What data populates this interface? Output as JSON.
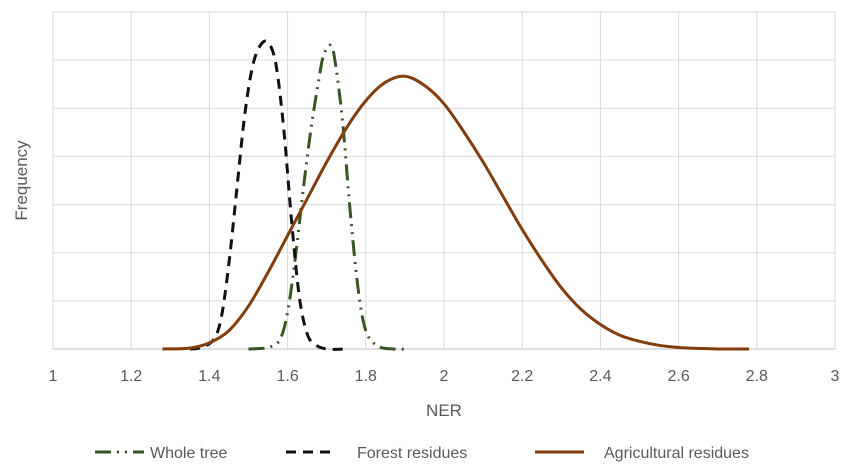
{
  "chart_data": {
    "type": "line",
    "title": "",
    "xlabel": "NER",
    "ylabel": "Frequency",
    "xlim": [
      1,
      3
    ],
    "ylim": [
      0,
      1
    ],
    "grid": true,
    "legend_position": "bottom",
    "x_ticks": [
      "1",
      "1.2",
      "1.4",
      "1.6",
      "1.8",
      "2",
      "2.2",
      "2.4",
      "2.6",
      "2.8",
      "3"
    ],
    "series": [
      {
        "name": "Whole tree",
        "color": "#375623",
        "style": "dash-dot-dot",
        "points": [
          [
            1.5,
            0.0
          ],
          [
            1.55,
            0.005
          ],
          [
            1.58,
            0.03
          ],
          [
            1.6,
            0.12
          ],
          [
            1.62,
            0.3
          ],
          [
            1.64,
            0.52
          ],
          [
            1.66,
            0.72
          ],
          [
            1.68,
            0.88
          ],
          [
            1.69,
            0.95
          ],
          [
            1.7,
            0.98
          ],
          [
            1.71,
            0.99
          ],
          [
            1.72,
            0.95
          ],
          [
            1.74,
            0.75
          ],
          [
            1.76,
            0.45
          ],
          [
            1.78,
            0.2
          ],
          [
            1.8,
            0.06
          ],
          [
            1.83,
            0.01
          ],
          [
            1.87,
            0.0
          ],
          [
            1.91,
            0.0
          ]
        ]
      },
      {
        "name": "Forest residues",
        "color": "#111111",
        "style": "dash",
        "points": [
          [
            1.35,
            0.0
          ],
          [
            1.38,
            0.005
          ],
          [
            1.41,
            0.03
          ],
          [
            1.43,
            0.1
          ],
          [
            1.45,
            0.28
          ],
          [
            1.47,
            0.52
          ],
          [
            1.49,
            0.76
          ],
          [
            1.51,
            0.92
          ],
          [
            1.53,
            0.99
          ],
          [
            1.55,
            1.0
          ],
          [
            1.57,
            0.93
          ],
          [
            1.59,
            0.72
          ],
          [
            1.61,
            0.42
          ],
          [
            1.63,
            0.17
          ],
          [
            1.65,
            0.05
          ],
          [
            1.67,
            0.015
          ],
          [
            1.7,
            0.0
          ],
          [
            1.75,
            0.0
          ]
        ]
      },
      {
        "name": "Agricultural residues",
        "color": "#833C0B",
        "style": "solid",
        "points": [
          [
            1.28,
            0.0
          ],
          [
            1.35,
            0.003
          ],
          [
            1.4,
            0.02
          ],
          [
            1.45,
            0.06
          ],
          [
            1.5,
            0.14
          ],
          [
            1.55,
            0.25
          ],
          [
            1.6,
            0.37
          ],
          [
            1.65,
            0.49
          ],
          [
            1.7,
            0.61
          ],
          [
            1.75,
            0.72
          ],
          [
            1.8,
            0.81
          ],
          [
            1.85,
            0.87
          ],
          [
            1.9,
            0.89
          ],
          [
            1.95,
            0.86
          ],
          [
            2.0,
            0.8
          ],
          [
            2.05,
            0.71
          ],
          [
            2.1,
            0.61
          ],
          [
            2.15,
            0.5
          ],
          [
            2.2,
            0.39
          ],
          [
            2.25,
            0.29
          ],
          [
            2.3,
            0.2
          ],
          [
            2.35,
            0.13
          ],
          [
            2.4,
            0.08
          ],
          [
            2.45,
            0.045
          ],
          [
            2.5,
            0.025
          ],
          [
            2.55,
            0.012
          ],
          [
            2.6,
            0.005
          ],
          [
            2.65,
            0.002
          ],
          [
            2.7,
            0.0
          ],
          [
            2.78,
            0.0
          ]
        ]
      }
    ]
  }
}
